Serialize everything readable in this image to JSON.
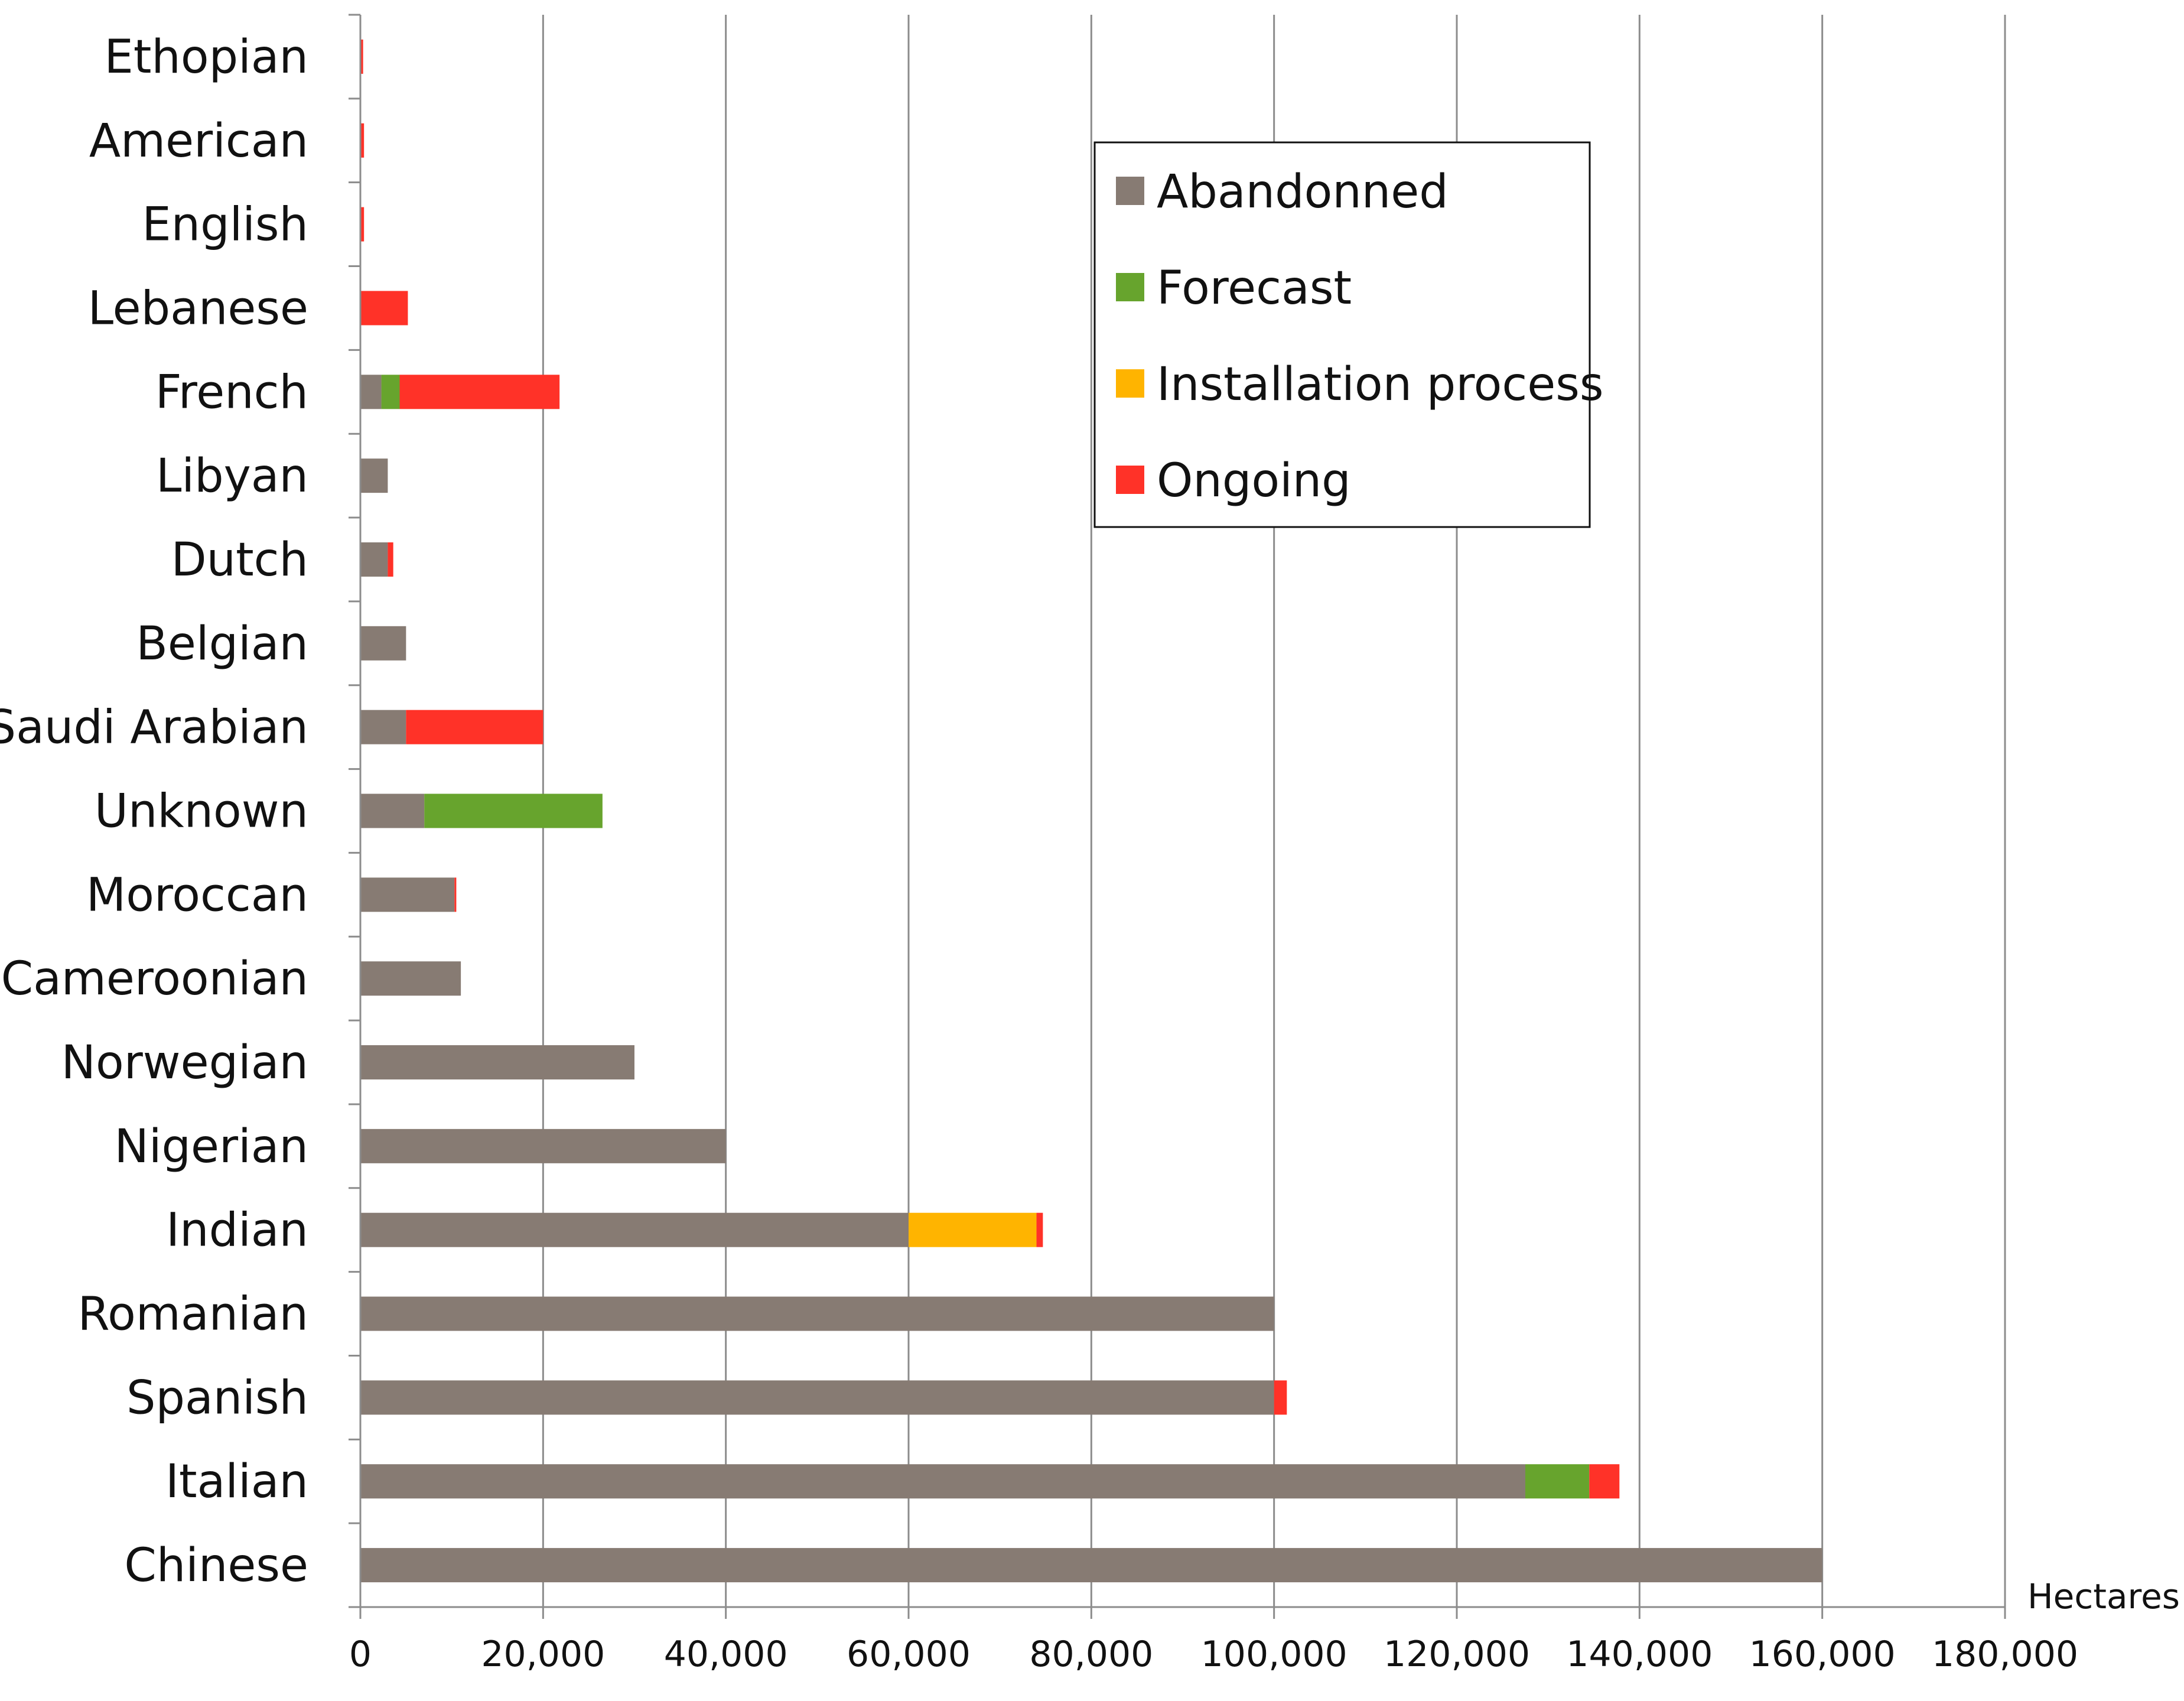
{
  "chart_data": {
    "type": "bar",
    "orientation": "horizontal",
    "stacked": true,
    "categories": [
      "Ethopian",
      "American",
      "English",
      "Lebanese",
      "French",
      "Libyan",
      "Dutch",
      "Belgian",
      "Saudi Arabian",
      "Unknown",
      "Moroccan",
      "Cameroonian",
      "Norwegian",
      "Nigerian",
      "Indian",
      "Romanian",
      "Spanish",
      "Italian",
      "Chinese"
    ],
    "series": [
      {
        "name": "Abandonned",
        "color": "#877b73",
        "values": [
          0,
          0,
          0,
          0,
          2300,
          3000,
          3000,
          5000,
          5000,
          7000,
          10300,
          11000,
          30000,
          40000,
          60000,
          100000,
          100000,
          127500,
          160000
        ]
      },
      {
        "name": "Forecast",
        "color": "#67a42d",
        "values": [
          0,
          0,
          0,
          0,
          2000,
          0,
          0,
          0,
          0,
          19500,
          0,
          0,
          0,
          0,
          0,
          0,
          0,
          7000,
          0
        ]
      },
      {
        "name": "Installation process",
        "color": "#ffb400",
        "values": [
          0,
          0,
          0,
          0,
          0,
          0,
          0,
          0,
          0,
          0,
          0,
          0,
          0,
          0,
          14000,
          0,
          0,
          0,
          0
        ]
      },
      {
        "name": "Ongoing",
        "color": "#ff3228",
        "values": [
          300,
          400,
          400,
          5200,
          17500,
          0,
          600,
          0,
          15000,
          0,
          200,
          0,
          0,
          0,
          700,
          0,
          1400,
          3300,
          0
        ]
      }
    ],
    "xlim": [
      0,
      180000
    ],
    "xticks": [
      "0",
      "20,000",
      "40,000",
      "60,000",
      "80,000",
      "100,000",
      "120,000",
      "140,000",
      "160,000",
      "180,000"
    ],
    "xtick_values": [
      0,
      20000,
      40000,
      60000,
      80000,
      100000,
      120000,
      140000,
      160000,
      180000
    ],
    "xlabel": "Hectares",
    "ylabel": "",
    "title": "",
    "grid": "vertical",
    "legend_position": "top-right"
  }
}
